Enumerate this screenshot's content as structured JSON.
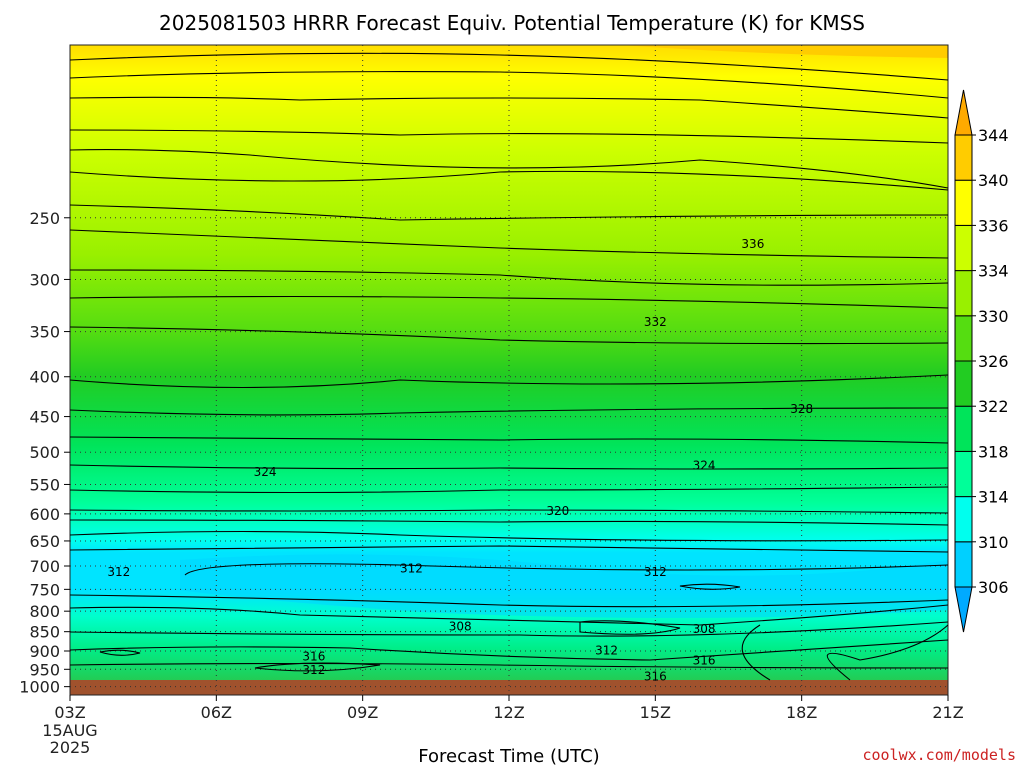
{
  "chart_data": {
    "type": "contour",
    "title": "2025081503 HRRR Forecast Equiv. Potential Temperature (K) for KMSS",
    "xlabel": "Forecast Time (UTC)",
    "ylabel": "",
    "y_scale": "log-pressure",
    "ylim": [
      1025,
      150
    ],
    "x_ticks": [
      "03Z",
      "06Z",
      "09Z",
      "12Z",
      "15Z",
      "18Z",
      "21Z"
    ],
    "x_first_tick_extra": [
      "15AUG",
      "2025"
    ],
    "y_ticks": [
      250,
      300,
      350,
      400,
      450,
      500,
      550,
      600,
      650,
      700,
      750,
      800,
      850,
      900,
      950,
      1000
    ],
    "grid": true,
    "colorbar": {
      "levels": [
        306,
        310,
        314,
        318,
        322,
        326,
        330,
        334,
        336,
        340,
        344
      ],
      "colors": [
        "#00aaff",
        "#00d0ff",
        "#00ffee",
        "#00ff99",
        "#00e45a",
        "#22cc22",
        "#55dd11",
        "#99f000",
        "#ccff00",
        "#ffff00",
        "#ffcc00",
        "#ffaa00"
      ]
    },
    "contour_labels": [
      {
        "time": "17Z",
        "pressure": 270,
        "value": "336"
      },
      {
        "time": "15Z",
        "pressure": 340,
        "value": "332"
      },
      {
        "time": "18Z",
        "pressure": 440,
        "value": "328"
      },
      {
        "time": "07Z",
        "pressure": 530,
        "value": "324"
      },
      {
        "time": "16Z",
        "pressure": 520,
        "value": "324"
      },
      {
        "time": "13Z",
        "pressure": 595,
        "value": "320"
      },
      {
        "time": "04Z",
        "pressure": 712,
        "value": "312"
      },
      {
        "time": "10Z",
        "pressure": 705,
        "value": "312"
      },
      {
        "time": "15Z",
        "pressure": 712,
        "value": "312"
      },
      {
        "time": "11Z",
        "pressure": 837,
        "value": "308"
      },
      {
        "time": "16Z",
        "pressure": 843,
        "value": "308"
      },
      {
        "time": "08Z",
        "pressure": 915,
        "value": "316"
      },
      {
        "time": "16Z",
        "pressure": 925,
        "value": "316"
      },
      {
        "time": "14Z",
        "pressure": 898,
        "value": "312"
      },
      {
        "time": "08Z",
        "pressure": 952,
        "value": "312"
      },
      {
        "time": "15Z",
        "pressure": 970,
        "value": "316"
      }
    ]
  },
  "credit": "coolwx.com/models"
}
